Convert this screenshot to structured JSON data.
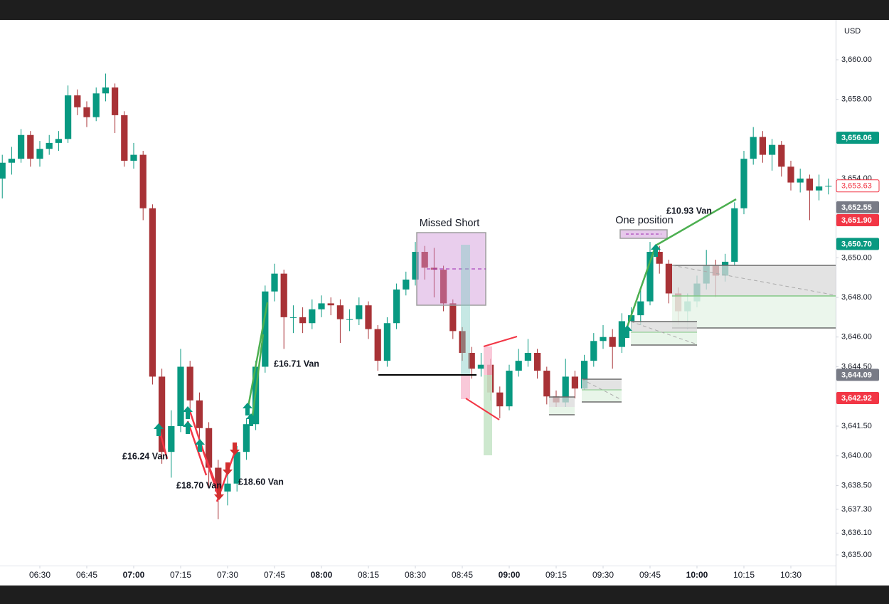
{
  "chart_data": {
    "type": "candlestick",
    "currency": "USD",
    "x": [
      378,
      381,
      384,
      387,
      390,
      393,
      396,
      399,
      402,
      405,
      408,
      411,
      414,
      417,
      420,
      423,
      426,
      429,
      432,
      435,
      438,
      441,
      444,
      447,
      450,
      453,
      456,
      459,
      462,
      465,
      468,
      471,
      474,
      477,
      480,
      483,
      486,
      489,
      492,
      495,
      498,
      501,
      504,
      507,
      510,
      513,
      516,
      519,
      522,
      525,
      528,
      531,
      534,
      537,
      540,
      543,
      546,
      549,
      552,
      555,
      558,
      561,
      564,
      567,
      570,
      573,
      576,
      579,
      582,
      585,
      588,
      591,
      594,
      597,
      600,
      603,
      606,
      609,
      612,
      615,
      618,
      621,
      624,
      627,
      630,
      633,
      636,
      639,
      642
    ],
    "open": [
      3654.0,
      3654.8,
      3655.0,
      3656.2,
      3655.0,
      3655.5,
      3655.8,
      3656.0,
      3658.2,
      3657.6,
      3657.1,
      3658.3,
      3658.6,
      3657.2,
      3654.9,
      3655.2,
      3652.5,
      3644.0,
      3640.2,
      3641.5,
      3644.5,
      3642.8,
      3641.4,
      3639.4,
      3638.2,
      3638.6,
      3640.2,
      3641.6,
      3644.5,
      3648.3,
      3649.2,
      3647.0,
      3647.0,
      3646.7,
      3647.4,
      3647.7,
      3647.6,
      3646.9,
      3646.9,
      3647.6,
      3646.4,
      3644.8,
      3646.7,
      3648.4,
      3648.9,
      3650.3,
      3649.5,
      3649.4,
      3647.7,
      3646.3,
      3645.2,
      3644.4,
      3644.6,
      3643.2,
      3642.5,
      3644.3,
      3644.8,
      3645.2,
      3644.3,
      3643.0,
      3642.7,
      3644.0,
      3643.4,
      3644.8,
      3645.8,
      3646.0,
      3645.5,
      3646.8,
      3647.1,
      3647.8,
      3650.3,
      3649.7,
      3648.2,
      3647.3,
      3647.8,
      3648.7,
      3649.6,
      3649.1,
      3649.8,
      3652.5,
      3655.0,
      3656.1,
      3655.2,
      3655.7,
      3654.6,
      3653.8,
      3654.0,
      3653.4,
      3653.6
    ],
    "high": [
      3655.2,
      3655.6,
      3656.5,
      3656.4,
      3655.9,
      3656.2,
      3656.4,
      3658.7,
      3658.5,
      3657.9,
      3658.6,
      3659.3,
      3658.8,
      3657.4,
      3655.8,
      3655.4,
      3652.7,
      3644.4,
      3642.3,
      3645.4,
      3644.8,
      3643.2,
      3641.7,
      3639.8,
      3639.3,
      3640.5,
      3641.9,
      3644.8,
      3648.6,
      3649.7,
      3649.4,
      3647.6,
      3647.5,
      3647.9,
      3648.1,
      3648.0,
      3647.9,
      3647.4,
      3648.0,
      3647.8,
      3646.6,
      3647.0,
      3648.7,
      3649.3,
      3650.8,
      3650.6,
      3650.5,
      3649.6,
      3647.9,
      3646.5,
      3645.5,
      3645.2,
      3644.9,
      3643.5,
      3644.6,
      3645.4,
      3645.9,
      3645.4,
      3644.5,
      3643.3,
      3644.9,
      3644.3,
      3645.1,
      3646.2,
      3646.6,
      3646.4,
      3647.2,
      3647.5,
      3648.4,
      3650.8,
      3650.6,
      3649.9,
      3648.5,
      3648.2,
      3649.1,
      3650.4,
      3649.9,
      3650.2,
      3652.8,
      3655.4,
      3656.6,
      3656.4,
      3656.0,
      3655.9,
      3654.9,
      3654.5,
      3654.2,
      3654.2,
      3654.0
    ],
    "low": [
      3653.0,
      3654.2,
      3654.8,
      3654.6,
      3654.6,
      3655.2,
      3655.4,
      3655.8,
      3657.2,
      3656.6,
      3656.9,
      3657.9,
      3656.3,
      3654.6,
      3654.5,
      3651.9,
      3643.6,
      3639.6,
      3638.9,
      3641.2,
      3642.1,
      3640.5,
      3638.4,
      3636.8,
      3637.5,
      3638.2,
      3639.8,
      3641.3,
      3644.2,
      3647.8,
      3645.4,
      3646.2,
      3646.2,
      3646.4,
      3647.0,
      3647.1,
      3645.7,
      3646.3,
      3646.6,
      3645.9,
      3644.3,
      3644.5,
      3646.4,
      3648.1,
      3648.6,
      3648.9,
      3648.0,
      3647.3,
      3645.9,
      3644.8,
      3643.9,
      3644.0,
      3642.8,
      3641.9,
      3642.3,
      3644.0,
      3644.5,
      3643.9,
      3642.6,
      3642.2,
      3642.4,
      3642.9,
      3643.1,
      3644.5,
      3645.4,
      3644.4,
      3645.2,
      3646.4,
      3646.6,
      3647.6,
      3649.2,
      3647.7,
      3646.6,
      3646.4,
      3647.5,
      3648.4,
      3648.0,
      3648.8,
      3649.6,
      3652.2,
      3654.7,
      3654.8,
      3654.4,
      3654.1,
      3653.4,
      3653.3,
      3651.9,
      3652.9,
      3653.2
    ],
    "close": [
      3654.8,
      3655.0,
      3656.2,
      3655.0,
      3655.5,
      3655.8,
      3656.0,
      3658.2,
      3657.6,
      3657.1,
      3658.3,
      3658.6,
      3657.2,
      3654.9,
      3655.2,
      3652.5,
      3644.0,
      3640.2,
      3641.5,
      3644.5,
      3642.8,
      3641.4,
      3639.4,
      3638.2,
      3638.6,
      3640.2,
      3641.6,
      3644.5,
      3648.3,
      3649.2,
      3647.0,
      3647.0,
      3646.7,
      3647.4,
      3647.7,
      3647.6,
      3646.9,
      3646.9,
      3647.6,
      3646.4,
      3644.8,
      3646.7,
      3648.4,
      3648.9,
      3650.3,
      3649.5,
      3649.4,
      3647.7,
      3646.3,
      3645.2,
      3644.4,
      3644.6,
      3643.2,
      3642.5,
      3644.3,
      3644.8,
      3645.2,
      3644.3,
      3643.0,
      3642.7,
      3644.0,
      3643.4,
      3644.8,
      3645.8,
      3646.0,
      3645.5,
      3646.8,
      3647.1,
      3647.8,
      3650.3,
      3649.7,
      3648.2,
      3647.3,
      3647.8,
      3648.7,
      3649.6,
      3649.1,
      3649.8,
      3652.5,
      3655.0,
      3656.1,
      3655.2,
      3655.7,
      3654.6,
      3653.8,
      3654.0,
      3653.4,
      3653.6,
      3653.63
    ],
    "up_color": "#089981",
    "down_color": "#a83236",
    "xlim": [
      377.27,
      644.32
    ],
    "ylim": [
      3634.46,
      3662.01
    ],
    "xticks": [
      {
        "value": 390,
        "label": "06:30"
      },
      {
        "value": 405,
        "label": "06:45"
      },
      {
        "value": 420,
        "label": "07:00",
        "bold": true
      },
      {
        "value": 435,
        "label": "07:15"
      },
      {
        "value": 450,
        "label": "07:30"
      },
      {
        "value": 465,
        "label": "07:45"
      },
      {
        "value": 480,
        "label": "08:00",
        "bold": true
      },
      {
        "value": 495,
        "label": "08:15"
      },
      {
        "value": 510,
        "label": "08:30"
      },
      {
        "value": 525,
        "label": "08:45"
      },
      {
        "value": 540,
        "label": "09:00",
        "bold": true
      },
      {
        "value": 555,
        "label": "09:15"
      },
      {
        "value": 570,
        "label": "09:30"
      },
      {
        "value": 585,
        "label": "09:45"
      },
      {
        "value": 600,
        "label": "10:00",
        "bold": true
      },
      {
        "value": 615,
        "label": "10:15"
      },
      {
        "value": 630,
        "label": "10:30"
      }
    ],
    "yticks": [
      {
        "value": 3660,
        "label": "3,660.00"
      },
      {
        "value": 3658,
        "label": "3,658.00"
      },
      {
        "value": 3654,
        "label": "3,654.00"
      },
      {
        "value": 3650,
        "label": "3,650.00"
      },
      {
        "value": 3648,
        "label": "3,648.00"
      },
      {
        "value": 3646,
        "label": "3,646.00"
      },
      {
        "value": 3644.5,
        "label": "3,644.50"
      },
      {
        "value": 3641.5,
        "label": "3,641.50"
      },
      {
        "value": 3640,
        "label": "3,640.00"
      },
      {
        "value": 3638.5,
        "label": "3,638.50"
      },
      {
        "value": 3637.3,
        "label": "3,637.30"
      },
      {
        "value": 3636.1,
        "label": "3,636.10"
      },
      {
        "value": 3635,
        "label": "3,635.00"
      }
    ],
    "price_labels": [
      {
        "value": 3656.06,
        "label": "3,656.06",
        "color": "#089981"
      },
      {
        "value": 3653.63,
        "label": "3,653.63",
        "color": "#f23645",
        "outline": true
      },
      {
        "value": 3652.55,
        "label": "3,652.55",
        "color": "#787b86"
      },
      {
        "value": 3651.9,
        "label": "3,651.90",
        "color": "#f23645"
      },
      {
        "value": 3650.7,
        "label": "3,650.70",
        "color": "#089981"
      },
      {
        "value": 3644.09,
        "label": "3,644.09",
        "color": "#787b86"
      },
      {
        "value": 3642.92,
        "label": "3,642.92",
        "color": "#f23645"
      }
    ],
    "annotations": [
      {
        "text": "Missed Short",
        "color": "#f23645"
      },
      {
        "text": "One position",
        "color": "#f23645"
      },
      {
        "text": "£10.93 Van",
        "color": "#4caf50"
      },
      {
        "text": "£16.71 Van",
        "color": "#4caf50"
      },
      {
        "text": "£16.24 Van",
        "color": "#f23645"
      },
      {
        "text": "£18.70 Van",
        "color": "#f23645"
      },
      {
        "text": "£18.60 Van",
        "color": "#f23645"
      }
    ]
  }
}
